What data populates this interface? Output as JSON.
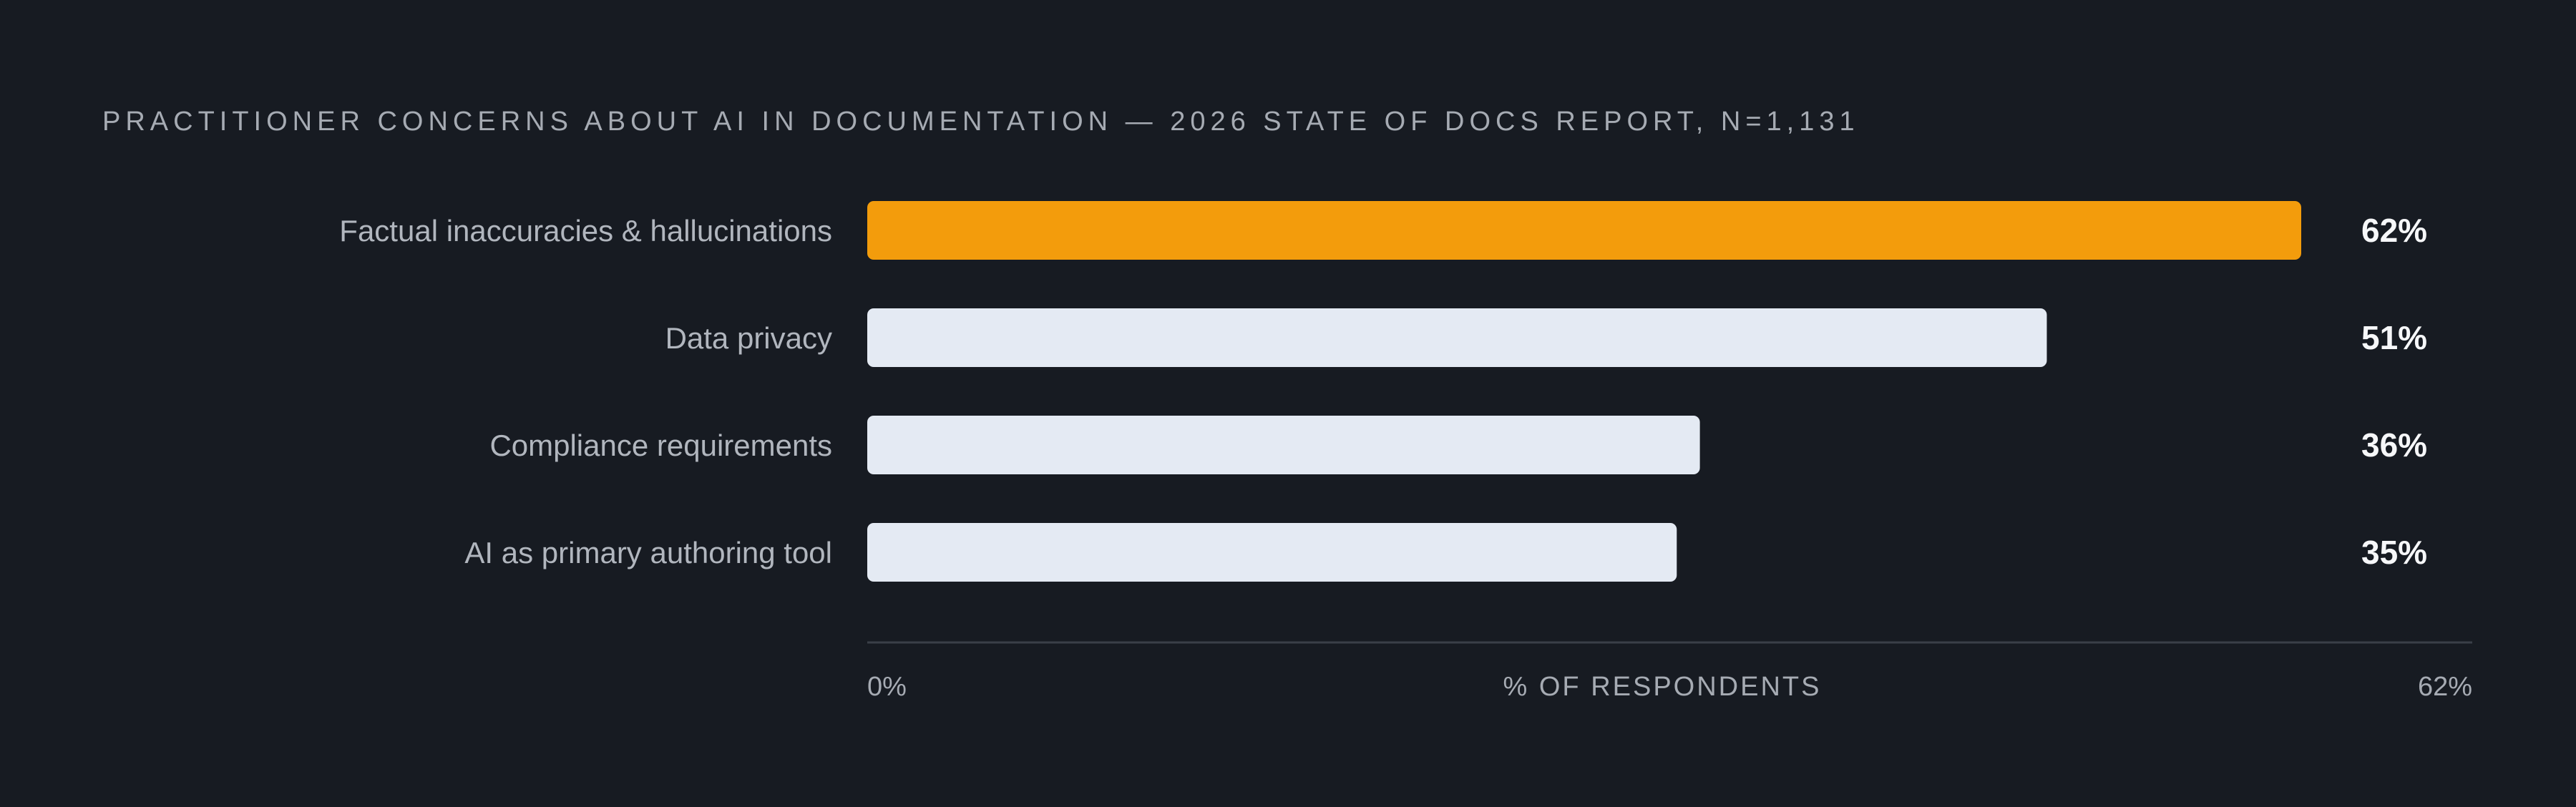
{
  "chart_data": {
    "type": "bar",
    "orientation": "horizontal",
    "title": "PRACTITIONER CONCERNS ABOUT AI IN DOCUMENTATION — 2026 STATE OF DOCS REPORT, N=1,131",
    "categories": [
      "Factual inaccuracies & hallucinations",
      "Data privacy",
      "Compliance requirements",
      "AI as primary authoring tool"
    ],
    "values": [
      62,
      51,
      36,
      35
    ],
    "value_labels": [
      "62%",
      "51%",
      "36%",
      "35%"
    ],
    "xlabel": "% OF RESPONDENTS",
    "xlim": [
      0,
      62
    ],
    "x_tick_labels": [
      "0%",
      "62%"
    ],
    "grid": false,
    "legend": "none",
    "highlight_index": 0,
    "colors": {
      "highlight": "#f39c0c",
      "bar": "#e4eaf3",
      "highlight_text": "#f39c0c",
      "value_text": "#f6f7f9",
      "axis_line": "#3a3f48",
      "background": "#171b22"
    }
  }
}
